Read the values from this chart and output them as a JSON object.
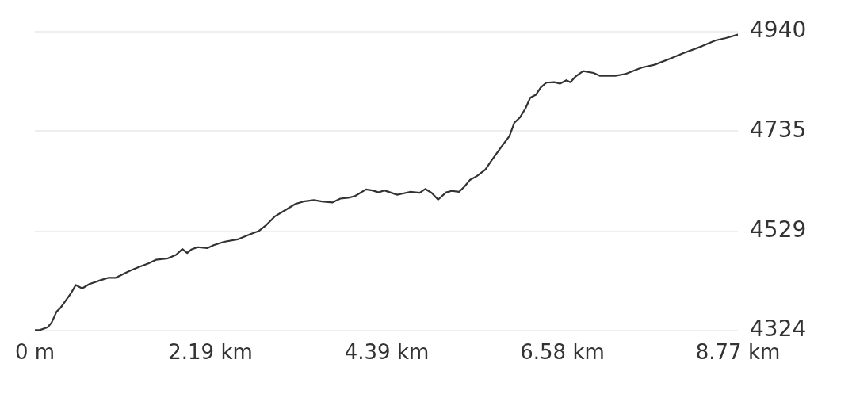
{
  "chart_data": {
    "type": "line",
    "color": "#333333",
    "marker": "none",
    "grid": "y",
    "x": [
      0,
      0.06,
      0.16,
      0.21,
      0.27,
      0.32,
      0.39,
      0.45,
      0.51,
      0.59,
      0.68,
      0.82,
      0.92,
      1.01,
      1.18,
      1.31,
      1.41,
      1.51,
      1.66,
      1.76,
      1.84,
      1.9,
      1.95,
      2.03,
      2.15,
      2.23,
      2.36,
      2.53,
      2.69,
      2.79,
      2.89,
      2.99,
      3.12,
      3.25,
      3.35,
      3.48,
      3.58,
      3.71,
      3.81,
      3.91,
      3.99,
      4.13,
      4.21,
      4.29,
      4.36,
      4.52,
      4.68,
      4.8,
      4.87,
      4.95,
      5.03,
      5.13,
      5.2,
      5.29,
      5.36,
      5.43,
      5.51,
      5.62,
      5.69,
      5.82,
      5.92,
      5.98,
      6.05,
      6.12,
      6.18,
      6.25,
      6.31,
      6.38,
      6.48,
      6.55,
      6.63,
      6.68,
      6.74,
      6.84,
      6.97,
      7.05,
      7.24,
      7.37,
      7.57,
      7.73,
      7.93,
      8.09,
      8.32,
      8.49,
      8.62,
      8.77
    ],
    "values": [
      4325,
      4325,
      4331,
      4341,
      4363,
      4371,
      4387,
      4401,
      4418,
      4411,
      4420,
      4428,
      4433,
      4433,
      4447,
      4456,
      4462,
      4470,
      4473,
      4480,
      4492,
      4484,
      4491,
      4496,
      4494,
      4500,
      4507,
      4512,
      4523,
      4529,
      4542,
      4559,
      4572,
      4585,
      4590,
      4593,
      4590,
      4588,
      4596,
      4598,
      4601,
      4615,
      4613,
      4609,
      4613,
      4604,
      4610,
      4608,
      4616,
      4608,
      4594,
      4609,
      4612,
      4610,
      4621,
      4635,
      4642,
      4656,
      4673,
      4703,
      4725,
      4752,
      4763,
      4782,
      4804,
      4810,
      4825,
      4835,
      4836,
      4833,
      4840,
      4836,
      4847,
      4859,
      4855,
      4849,
      4849,
      4853,
      4866,
      4872,
      4885,
      4896,
      4910,
      4922,
      4927,
      4934
    ],
    "xlim": [
      0,
      8.77
    ],
    "xticks": [
      {
        "value": 0,
        "label": "0 m"
      },
      {
        "value": 2.19,
        "label": "2.19 km"
      },
      {
        "value": 4.39,
        "label": "4.39 km"
      },
      {
        "value": 6.58,
        "label": "6.58 km"
      },
      {
        "value": 8.77,
        "label": "8.77 km"
      }
    ],
    "ylim": [
      4324,
      4940
    ],
    "yticks": [
      4324,
      4529,
      4735,
      4940
    ]
  }
}
